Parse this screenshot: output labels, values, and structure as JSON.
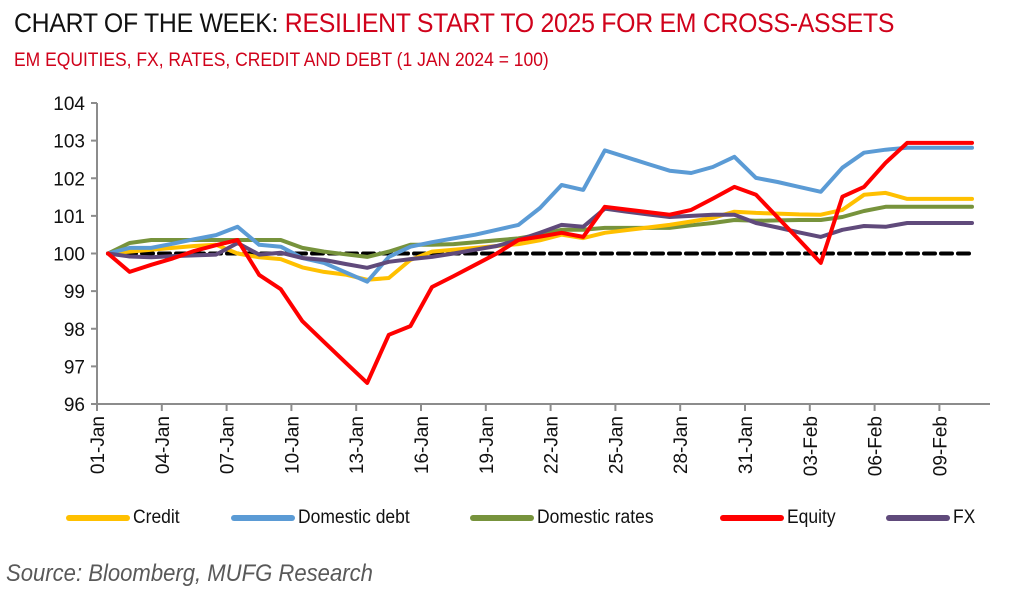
{
  "header": {
    "title_prefix": "CHART OF THE WEEK: ",
    "title_accent": "RESILIENT START TO 2025 FOR EM CROSS-ASSETS",
    "subtitle": "EM EQUITIES, FX, RATES, CREDIT AND DEBT (1 JAN 2024 = 100)"
  },
  "source": "Source: Bloomberg, MUFG Research",
  "colors": {
    "title_accent": "#d0021b",
    "credit": "#ffc000",
    "domestic_debt": "#5b9bd5",
    "domestic_rates": "#77933c",
    "equity": "#ff0000",
    "fx": "#604a7b",
    "baseline": "#000000"
  },
  "chart_data": {
    "type": "line",
    "title": "EM EQUITIES, FX, RATES, CREDIT AND DEBT (1 JAN 2024 = 100)",
    "xlabel": "",
    "ylabel": "",
    "ylim": [
      96,
      104
    ],
    "yticks": [
      96,
      97,
      98,
      99,
      100,
      101,
      102,
      103,
      104
    ],
    "xtick_labels": [
      "01-Jan",
      "04-Jan",
      "07-Jan",
      "10-Jan",
      "13-Jan",
      "16-Jan",
      "19-Jan",
      "22-Jan",
      "25-Jan",
      "28-Jan",
      "31-Jan",
      "03-Feb",
      "06-Feb",
      "09-Feb"
    ],
    "xtick_every": 3,
    "x": [
      "01-Jan",
      "02-Jan",
      "03-Jan",
      "04-Jan",
      "05-Jan",
      "06-Jan",
      "07-Jan",
      "08-Jan",
      "09-Jan",
      "10-Jan",
      "11-Jan",
      "12-Jan",
      "13-Jan",
      "14-Jan",
      "15-Jan",
      "16-Jan",
      "17-Jan",
      "18-Jan",
      "19-Jan",
      "20-Jan",
      "21-Jan",
      "22-Jan",
      "23-Jan",
      "24-Jan",
      "25-Jan",
      "26-Jan",
      "27-Jan",
      "28-Jan",
      "29-Jan",
      "30-Jan",
      "31-Jan",
      "01-Feb",
      "02-Feb",
      "03-Feb",
      "04-Feb",
      "05-Feb",
      "06-Feb",
      "07-Feb",
      "08-Feb",
      "09-Feb",
      "10-Feb"
    ],
    "grid": false,
    "legend_position": "bottom",
    "reference_line": {
      "value": 100,
      "style": "dashed"
    },
    "series": [
      {
        "name": "Credit",
        "color_key": "credit",
        "values": [
          100.0,
          100.05,
          100.1,
          100.15,
          100.2,
          100.23,
          100.0,
          99.9,
          99.85,
          99.63,
          99.51,
          99.44,
          99.3,
          99.35,
          99.83,
          100.05,
          100.1,
          100.15,
          100.2,
          100.25,
          100.35,
          100.5,
          100.41,
          100.55,
          100.62,
          100.69,
          100.76,
          100.85,
          100.95,
          101.11,
          101.08,
          101.06,
          101.04,
          101.03,
          101.16,
          101.56,
          101.61,
          101.45,
          101.45,
          101.45,
          101.45
        ]
      },
      {
        "name": "Domestic debt",
        "color_key": "domestic_debt",
        "values": [
          100.0,
          100.15,
          100.15,
          100.26,
          100.38,
          100.49,
          100.71,
          100.23,
          100.18,
          99.88,
          99.75,
          99.5,
          99.25,
          99.91,
          100.18,
          100.3,
          100.4,
          100.5,
          100.63,
          100.76,
          101.21,
          101.82,
          101.69,
          102.74,
          102.56,
          102.38,
          102.2,
          102.14,
          102.3,
          102.57,
          102.01,
          101.9,
          101.77,
          101.64,
          102.28,
          102.68,
          102.76,
          102.81,
          102.81,
          102.81,
          102.81
        ]
      },
      {
        "name": "Domestic rates",
        "color_key": "domestic_rates",
        "values": [
          100.0,
          100.28,
          100.36,
          100.36,
          100.36,
          100.36,
          100.36,
          100.36,
          100.36,
          100.15,
          100.05,
          99.98,
          99.91,
          100.05,
          100.23,
          100.23,
          100.25,
          100.3,
          100.35,
          100.4,
          100.5,
          100.63,
          100.63,
          100.68,
          100.68,
          100.68,
          100.68,
          100.75,
          100.81,
          100.89,
          100.87,
          100.88,
          100.89,
          100.89,
          100.97,
          101.13,
          101.24,
          101.24,
          101.24,
          101.24,
          101.24
        ]
      },
      {
        "name": "Equity",
        "color_key": "equity",
        "values": [
          100.0,
          99.51,
          99.7,
          99.87,
          100.07,
          100.22,
          100.36,
          99.43,
          99.05,
          98.2,
          97.65,
          97.1,
          96.56,
          97.84,
          98.07,
          99.11,
          99.4,
          99.7,
          100.0,
          100.36,
          100.45,
          100.55,
          100.44,
          101.24,
          101.17,
          101.1,
          101.03,
          101.16,
          101.46,
          101.77,
          101.56,
          100.96,
          100.36,
          99.75,
          101.51,
          101.77,
          102.41,
          102.94,
          102.94,
          102.94,
          102.94
        ]
      },
      {
        "name": "FX",
        "color_key": "fx",
        "values": [
          100.0,
          99.92,
          99.9,
          99.93,
          99.95,
          99.97,
          100.28,
          99.97,
          100.02,
          99.88,
          99.83,
          99.72,
          99.62,
          99.78,
          99.85,
          99.91,
          100.0,
          100.1,
          100.2,
          100.36,
          100.55,
          100.76,
          100.71,
          101.19,
          101.11,
          101.04,
          100.97,
          101.0,
          101.03,
          101.03,
          100.81,
          100.69,
          100.56,
          100.44,
          100.63,
          100.73,
          100.71,
          100.81,
          100.81,
          100.81,
          100.81
        ]
      }
    ]
  }
}
